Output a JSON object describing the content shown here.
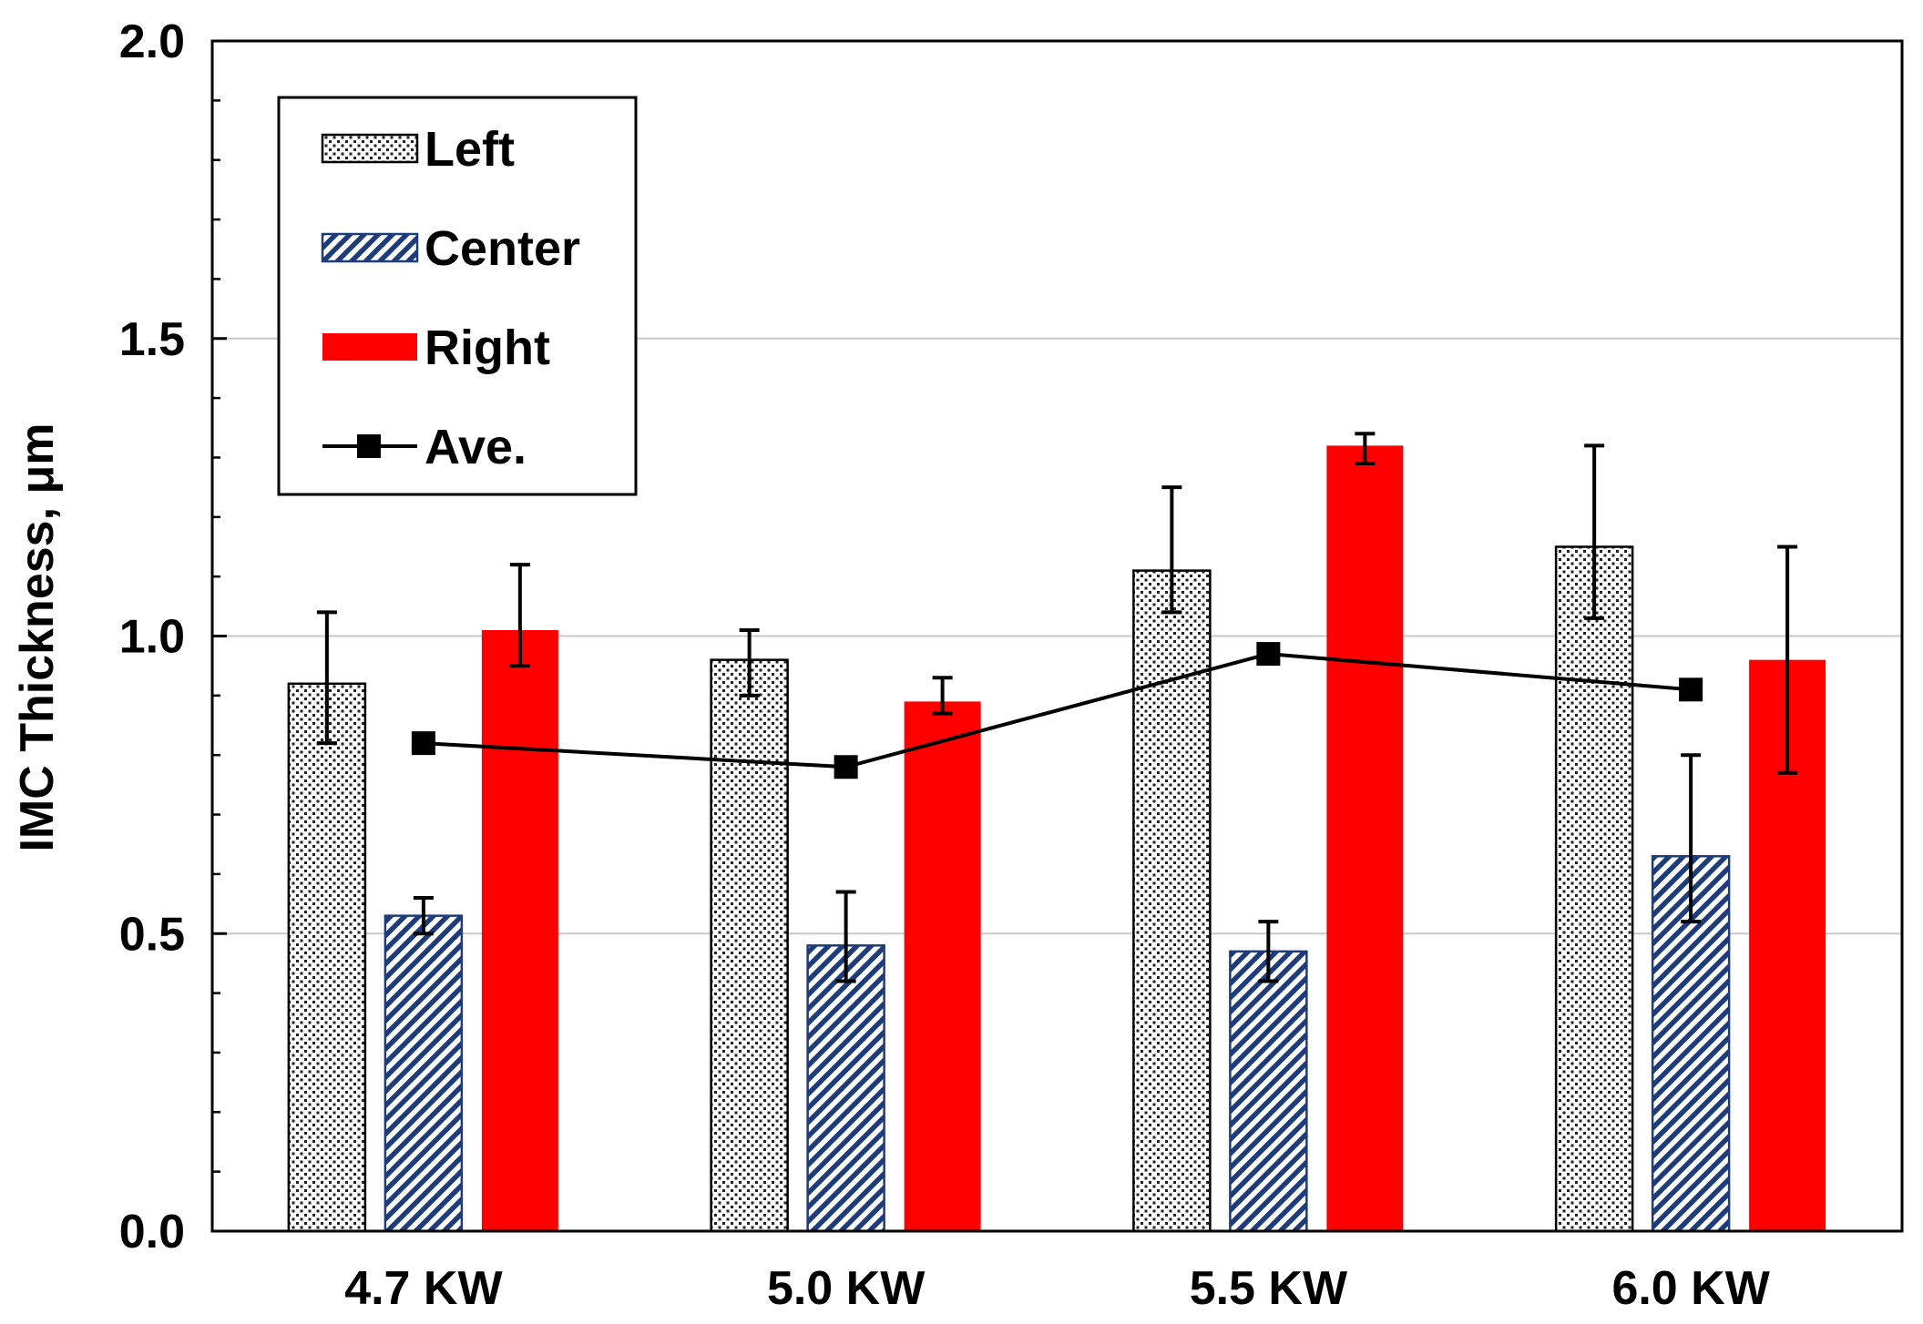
{
  "chart_data": {
    "type": "bar",
    "title": "",
    "xlabel": "",
    "ylabel": "IMC Thickness, μm",
    "ylim": [
      0,
      2.0
    ],
    "yticks": [
      0.0,
      0.5,
      1.0,
      1.5,
      2.0
    ],
    "ytick_labels": [
      "0.0",
      "0.5",
      "1.0",
      "1.5",
      "2.0"
    ],
    "yminor_step": 0.1,
    "grid": "horizontal major",
    "legend_position": "top-left",
    "categories": [
      "4.7 KW",
      "5.0 KW",
      "5.5 KW",
      "6.0 KW"
    ],
    "series": [
      {
        "name": "Left",
        "kind": "bar",
        "pattern": "dots",
        "color": "#ffffff",
        "values": [
          0.92,
          0.96,
          1.11,
          1.15
        ],
        "err_low": [
          0.82,
          0.9,
          1.04,
          1.03
        ],
        "err_high": [
          1.04,
          1.01,
          1.25,
          1.32
        ]
      },
      {
        "name": "Center",
        "kind": "bar",
        "pattern": "hatch",
        "color": "#1f3c7a",
        "values": [
          0.53,
          0.48,
          0.47,
          0.63
        ],
        "err_low": [
          0.5,
          0.42,
          0.42,
          0.52
        ],
        "err_high": [
          0.56,
          0.57,
          0.52,
          0.8
        ]
      },
      {
        "name": "Right",
        "kind": "bar",
        "pattern": "solid",
        "color": "#ff0000",
        "values": [
          1.01,
          0.89,
          1.32,
          0.96
        ],
        "err_low": [
          0.95,
          0.87,
          1.29,
          0.77
        ],
        "err_high": [
          1.12,
          0.93,
          1.34,
          1.15
        ]
      },
      {
        "name": "Ave.",
        "kind": "line",
        "marker": "square",
        "color": "#000000",
        "values": [
          0.82,
          0.78,
          0.97,
          0.91
        ]
      }
    ]
  }
}
